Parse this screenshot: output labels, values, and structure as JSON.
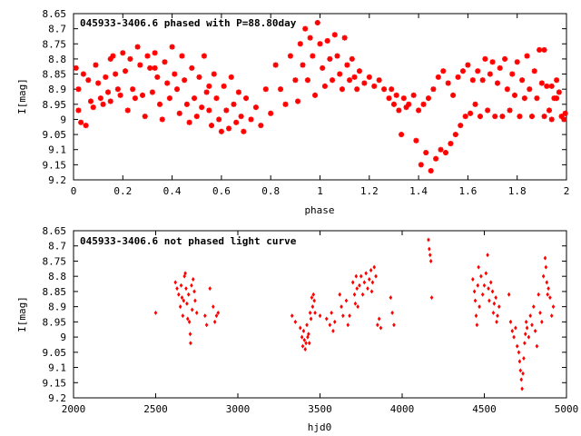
{
  "chart_data": [
    {
      "type": "scatter",
      "title": "045933-3406.6 phased with P=88.80day",
      "xlabel": "phase",
      "ylabel": "I[mag]",
      "xlim": [
        0,
        2
      ],
      "ylim": [
        9.2,
        8.65
      ],
      "y_inverted": true,
      "grid": false,
      "marker": "star",
      "color": "#ff0000",
      "xticks": [
        "0",
        "0.2",
        "0.4",
        "0.6",
        "0.8",
        "1",
        "1.2",
        "1.4",
        "1.6",
        "1.8",
        "2"
      ],
      "yticks": [
        "8.65",
        "8.7",
        "8.75",
        "8.8",
        "8.85",
        "8.9",
        "8.95",
        "9",
        "9.05",
        "9.1",
        "9.15",
        "9.2"
      ],
      "points": [
        [
          0.01,
          8.83
        ],
        [
          0.02,
          8.9
        ],
        [
          0.02,
          8.97
        ],
        [
          0.03,
          9.01
        ],
        [
          0.05,
          9.02
        ],
        [
          0.04,
          8.85
        ],
        [
          0.06,
          8.87
        ],
        [
          0.07,
          8.94
        ],
        [
          0.08,
          8.96
        ],
        [
          0.09,
          8.82
        ],
        [
          0.1,
          8.88
        ],
        [
          0.11,
          8.93
        ],
        [
          0.12,
          8.95
        ],
        [
          0.13,
          8.86
        ],
        [
          0.14,
          8.91
        ],
        [
          0.15,
          8.94
        ],
        [
          0.16,
          8.79
        ],
        [
          0.17,
          8.85
        ],
        [
          0.18,
          8.9
        ],
        [
          0.19,
          8.92
        ],
        [
          0.2,
          8.78
        ],
        [
          0.21,
          8.84
        ],
        [
          0.22,
          8.97
        ],
        [
          0.23,
          8.8
        ],
        [
          0.24,
          8.9
        ],
        [
          0.25,
          8.93
        ],
        [
          0.26,
          8.76
        ],
        [
          0.27,
          8.82
        ],
        [
          0.28,
          8.92
        ],
        [
          0.29,
          8.99
        ],
        [
          0.3,
          8.79
        ],
        [
          0.31,
          8.83
        ],
        [
          0.32,
          8.91
        ],
        [
          0.33,
          8.78
        ],
        [
          0.34,
          8.86
        ],
        [
          0.35,
          8.95
        ],
        [
          0.36,
          9.0
        ],
        [
          0.37,
          8.81
        ],
        [
          0.38,
          8.88
        ],
        [
          0.39,
          8.93
        ],
        [
          0.4,
          8.76
        ],
        [
          0.41,
          8.85
        ],
        [
          0.42,
          8.9
        ],
        [
          0.43,
          8.98
        ],
        [
          0.44,
          8.79
        ],
        [
          0.45,
          8.87
        ],
        [
          0.46,
          8.95
        ],
        [
          0.47,
          9.01
        ],
        [
          0.48,
          8.83
        ],
        [
          0.49,
          8.93
        ],
        [
          0.5,
          8.99
        ],
        [
          0.51,
          8.86
        ],
        [
          0.52,
          8.96
        ],
        [
          0.53,
          8.79
        ],
        [
          0.54,
          8.91
        ],
        [
          0.55,
          8.97
        ],
        [
          0.56,
          9.02
        ],
        [
          0.57,
          8.85
        ],
        [
          0.58,
          8.93
        ],
        [
          0.59,
          9.0
        ],
        [
          0.6,
          9.04
        ],
        [
          0.61,
          8.89
        ],
        [
          0.62,
          8.97
        ],
        [
          0.63,
          9.03
        ],
        [
          0.64,
          8.86
        ],
        [
          0.65,
          8.95
        ],
        [
          0.66,
          9.01
        ],
        [
          0.67,
          8.91
        ],
        [
          0.68,
          8.99
        ],
        [
          0.69,
          9.04
        ],
        [
          0.7,
          8.93
        ],
        [
          0.72,
          9.0
        ],
        [
          0.74,
          8.96
        ],
        [
          0.76,
          9.02
        ],
        [
          0.78,
          8.9
        ],
        [
          0.8,
          8.98
        ],
        [
          0.82,
          8.82
        ],
        [
          0.84,
          8.9
        ],
        [
          0.86,
          8.95
        ],
        [
          0.88,
          8.79
        ],
        [
          0.9,
          8.87
        ],
        [
          0.91,
          8.94
        ],
        [
          0.92,
          8.75
        ],
        [
          0.93,
          8.82
        ],
        [
          0.94,
          8.7
        ],
        [
          0.95,
          8.87
        ],
        [
          0.96,
          8.73
        ],
        [
          0.97,
          8.79
        ],
        [
          0.98,
          8.92
        ],
        [
          0.99,
          8.68
        ],
        [
          1.0,
          8.75
        ],
        [
          1.01,
          8.83
        ],
        [
          1.02,
          8.89
        ],
        [
          1.03,
          8.74
        ],
        [
          1.04,
          8.8
        ],
        [
          1.05,
          8.87
        ],
        [
          1.06,
          8.72
        ],
        [
          1.07,
          8.79
        ],
        [
          1.08,
          8.85
        ],
        [
          1.09,
          8.9
        ],
        [
          1.1,
          8.73
        ],
        [
          1.11,
          8.82
        ],
        [
          1.12,
          8.87
        ],
        [
          1.13,
          8.8
        ],
        [
          1.14,
          8.86
        ],
        [
          1.15,
          8.9
        ],
        [
          1.16,
          8.84
        ],
        [
          1.18,
          8.88
        ],
        [
          1.2,
          8.86
        ],
        [
          1.22,
          8.89
        ],
        [
          1.24,
          8.87
        ],
        [
          1.26,
          8.9
        ],
        [
          1.28,
          8.93
        ],
        [
          1.29,
          8.9
        ],
        [
          1.3,
          8.95
        ],
        [
          1.31,
          8.92
        ],
        [
          1.32,
          8.97
        ],
        [
          1.33,
          9.05
        ],
        [
          1.34,
          8.93
        ],
        [
          1.35,
          8.96
        ],
        [
          1.36,
          8.95
        ],
        [
          1.38,
          8.92
        ],
        [
          1.39,
          9.07
        ],
        [
          1.4,
          8.97
        ],
        [
          1.41,
          9.15
        ],
        [
          1.42,
          8.95
        ],
        [
          1.43,
          9.11
        ],
        [
          1.44,
          8.93
        ],
        [
          1.45,
          9.17
        ],
        [
          1.46,
          8.9
        ],
        [
          1.47,
          9.13
        ],
        [
          1.48,
          8.86
        ],
        [
          1.49,
          9.1
        ],
        [
          1.5,
          8.84
        ],
        [
          1.51,
          9.11
        ],
        [
          1.52,
          8.88
        ],
        [
          1.53,
          9.08
        ],
        [
          1.54,
          8.92
        ],
        [
          1.55,
          9.05
        ],
        [
          1.56,
          8.86
        ],
        [
          1.57,
          9.02
        ],
        [
          1.58,
          8.84
        ],
        [
          1.59,
          8.99
        ],
        [
          1.6,
          8.82
        ],
        [
          1.61,
          8.98
        ],
        [
          1.62,
          8.87
        ],
        [
          1.63,
          8.95
        ],
        [
          1.64,
          8.84
        ],
        [
          1.65,
          8.99
        ],
        [
          1.66,
          8.87
        ],
        [
          1.67,
          8.8
        ],
        [
          1.68,
          8.97
        ],
        [
          1.69,
          8.85
        ],
        [
          1.7,
          8.81
        ],
        [
          1.71,
          8.99
        ],
        [
          1.72,
          8.88
        ],
        [
          1.73,
          8.83
        ],
        [
          1.74,
          8.99
        ],
        [
          1.75,
          8.8
        ],
        [
          1.76,
          8.9
        ],
        [
          1.77,
          8.97
        ],
        [
          1.78,
          8.85
        ],
        [
          1.79,
          8.92
        ],
        [
          1.8,
          8.81
        ],
        [
          1.81,
          8.99
        ],
        [
          1.82,
          8.87
        ],
        [
          1.83,
          8.93
        ],
        [
          1.84,
          8.79
        ],
        [
          1.85,
          8.9
        ],
        [
          1.86,
          8.99
        ],
        [
          1.87,
          8.84
        ],
        [
          1.88,
          8.93
        ],
        [
          1.89,
          8.77
        ],
        [
          1.9,
          8.88
        ],
        [
          1.91,
          8.77
        ],
        [
          1.92,
          8.89
        ],
        [
          1.93,
          8.97
        ],
        [
          1.94,
          8.89
        ],
        [
          1.95,
          8.93
        ],
        [
          1.96,
          8.93
        ],
        [
          1.97,
          8.91
        ],
        [
          1.98,
          8.99
        ],
        [
          1.99,
          9.0
        ],
        [
          1.995,
          8.98
        ],
        [
          1.96,
          8.87
        ],
        [
          1.94,
          9.0
        ],
        [
          1.91,
          8.99
        ],
        [
          0.15,
          8.8
        ],
        [
          0.33,
          8.83
        ],
        [
          0.55,
          8.89
        ]
      ]
    },
    {
      "type": "scatter",
      "title": "045933-3406.6 not phased light curve",
      "xlabel": "hjd0",
      "ylabel": "I[mag]",
      "xlim": [
        2000,
        5000
      ],
      "ylim": [
        9.2,
        8.65
      ],
      "y_inverted": true,
      "grid": false,
      "marker": "diamond",
      "color": "#ff0000",
      "xticks": [
        "2000",
        "2500",
        "3000",
        "3500",
        "4000",
        "4500",
        "5000"
      ],
      "yticks": [
        "8.65",
        "8.7",
        "8.75",
        "8.8",
        "8.85",
        "8.9",
        "8.95",
        "9",
        "9.05",
        "9.1",
        "9.15",
        "9.2"
      ],
      "points": [
        [
          2500,
          8.92
        ],
        [
          2620,
          8.82
        ],
        [
          2630,
          8.84
        ],
        [
          2640,
          8.86
        ],
        [
          2650,
          8.9
        ],
        [
          2655,
          8.83
        ],
        [
          2660,
          8.87
        ],
        [
          2665,
          8.93
        ],
        [
          2670,
          8.88
        ],
        [
          2675,
          8.8
        ],
        [
          2680,
          8.79
        ],
        [
          2685,
          8.84
        ],
        [
          2690,
          8.89
        ],
        [
          2695,
          8.94
        ],
        [
          2700,
          8.86
        ],
        [
          2705,
          8.95
        ],
        [
          2710,
          8.99
        ],
        [
          2712,
          9.02
        ],
        [
          2718,
          8.83
        ],
        [
          2722,
          8.91
        ],
        [
          2728,
          8.81
        ],
        [
          2735,
          8.85
        ],
        [
          2740,
          8.88
        ],
        [
          2750,
          8.92
        ],
        [
          2800,
          8.93
        ],
        [
          2810,
          8.96
        ],
        [
          2830,
          8.84
        ],
        [
          2850,
          8.9
        ],
        [
          2860,
          8.95
        ],
        [
          2870,
          8.93
        ],
        [
          2880,
          8.92
        ],
        [
          3330,
          8.93
        ],
        [
          3350,
          8.95
        ],
        [
          3380,
          8.97
        ],
        [
          3390,
          9.0
        ],
        [
          3395,
          9.03
        ],
        [
          3400,
          8.98
        ],
        [
          3405,
          9.01
        ],
        [
          3410,
          9.04
        ],
        [
          3415,
          9.02
        ],
        [
          3420,
          8.96
        ],
        [
          3425,
          9.0
        ],
        [
          3430,
          8.99
        ],
        [
          3435,
          9.02
        ],
        [
          3440,
          8.92
        ],
        [
          3445,
          8.94
        ],
        [
          3450,
          8.87
        ],
        [
          3455,
          8.9
        ],
        [
          3460,
          8.86
        ],
        [
          3465,
          8.88
        ],
        [
          3470,
          8.92
        ],
        [
          3500,
          8.93
        ],
        [
          3540,
          8.94
        ],
        [
          3560,
          8.96
        ],
        [
          3570,
          8.92
        ],
        [
          3580,
          8.98
        ],
        [
          3590,
          8.95
        ],
        [
          3620,
          8.86
        ],
        [
          3630,
          8.9
        ],
        [
          3640,
          8.93
        ],
        [
          3660,
          8.88
        ],
        [
          3670,
          8.96
        ],
        [
          3680,
          8.93
        ],
        [
          3700,
          8.82
        ],
        [
          3710,
          8.86
        ],
        [
          3715,
          8.89
        ],
        [
          3720,
          8.8
        ],
        [
          3725,
          8.84
        ],
        [
          3730,
          8.9
        ],
        [
          3740,
          8.83
        ],
        [
          3750,
          8.8
        ],
        [
          3760,
          8.86
        ],
        [
          3770,
          8.82
        ],
        [
          3780,
          8.79
        ],
        [
          3790,
          8.84
        ],
        [
          3800,
          8.81
        ],
        [
          3810,
          8.78
        ],
        [
          3815,
          8.85
        ],
        [
          3820,
          8.82
        ],
        [
          3830,
          8.77
        ],
        [
          3840,
          8.8
        ],
        [
          3850,
          8.96
        ],
        [
          3860,
          8.94
        ],
        [
          3870,
          8.97
        ],
        [
          3930,
          8.87
        ],
        [
          3940,
          8.92
        ],
        [
          3950,
          8.96
        ],
        [
          4160,
          8.68
        ],
        [
          4165,
          8.71
        ],
        [
          4170,
          8.73
        ],
        [
          4175,
          8.75
        ],
        [
          4180,
          8.87
        ],
        [
          4430,
          8.81
        ],
        [
          4440,
          8.85
        ],
        [
          4445,
          8.88
        ],
        [
          4450,
          8.93
        ],
        [
          4455,
          8.96
        ],
        [
          4460,
          8.83
        ],
        [
          4465,
          8.77
        ],
        [
          4470,
          8.9
        ],
        [
          4480,
          8.8
        ],
        [
          4490,
          8.86
        ],
        [
          4500,
          8.83
        ],
        [
          4510,
          8.79
        ],
        [
          4520,
          8.73
        ],
        [
          4525,
          8.84
        ],
        [
          4530,
          8.88
        ],
        [
          4540,
          8.82
        ],
        [
          4550,
          8.85
        ],
        [
          4555,
          8.92
        ],
        [
          4560,
          8.89
        ],
        [
          4570,
          8.87
        ],
        [
          4575,
          8.95
        ],
        [
          4580,
          8.93
        ],
        [
          4590,
          8.9
        ],
        [
          4650,
          8.86
        ],
        [
          4660,
          8.95
        ],
        [
          4670,
          8.98
        ],
        [
          4680,
          9.0
        ],
        [
          4690,
          8.97
        ],
        [
          4700,
          9.03
        ],
        [
          4710,
          9.05
        ],
        [
          4715,
          9.08
        ],
        [
          4720,
          9.11
        ],
        [
          4725,
          9.14
        ],
        [
          4730,
          9.17
        ],
        [
          4735,
          9.12
        ],
        [
          4740,
          9.07
        ],
        [
          4745,
          9.02
        ],
        [
          4750,
          8.99
        ],
        [
          4755,
          8.95
        ],
        [
          4760,
          8.97
        ],
        [
          4770,
          9.0
        ],
        [
          4780,
          8.93
        ],
        [
          4790,
          8.96
        ],
        [
          4800,
          8.9
        ],
        [
          4810,
          8.98
        ],
        [
          4820,
          9.03
        ],
        [
          4830,
          8.86
        ],
        [
          4840,
          8.92
        ],
        [
          4850,
          8.95
        ],
        [
          4860,
          8.8
        ],
        [
          4870,
          8.74
        ],
        [
          4875,
          8.77
        ],
        [
          4880,
          8.82
        ],
        [
          4885,
          8.86
        ],
        [
          4890,
          8.84
        ],
        [
          4900,
          8.87
        ],
        [
          4910,
          8.93
        ],
        [
          4920,
          8.9
        ]
      ]
    }
  ]
}
